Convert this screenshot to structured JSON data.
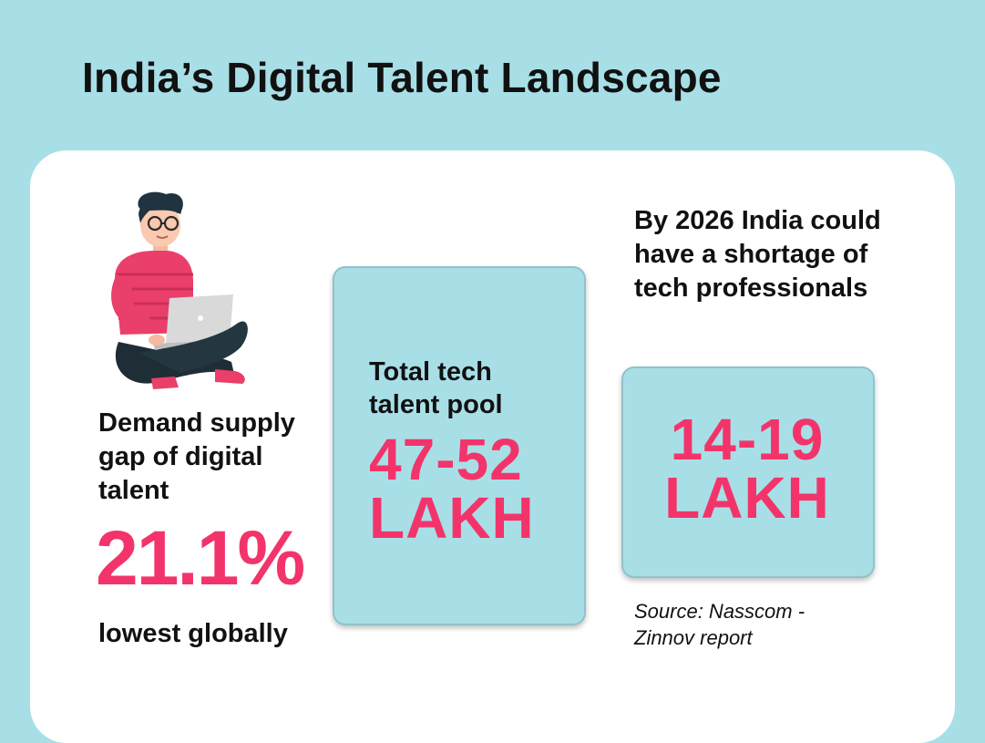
{
  "title": "India’s Digital Talent Landscape",
  "colors": {
    "background": "#a8dfe7",
    "card": "#ffffff",
    "accent_pink": "#f2346b",
    "text": "#111111"
  },
  "left_stat": {
    "label": "Demand supply gap of digital talent",
    "value": "21.1%",
    "note": "lowest globally",
    "illustration": "person-with-laptop-illustration"
  },
  "middle_stat": {
    "label": "Total tech talent pool",
    "value_line1": "47-52",
    "value_line2": "LAKH"
  },
  "right_stat": {
    "label": "By 2026 India could have a shortage of tech professionals",
    "value_line1": "14-19",
    "value_line2": "LAKH"
  },
  "source": "Source: Nasscom - Zinnov report"
}
